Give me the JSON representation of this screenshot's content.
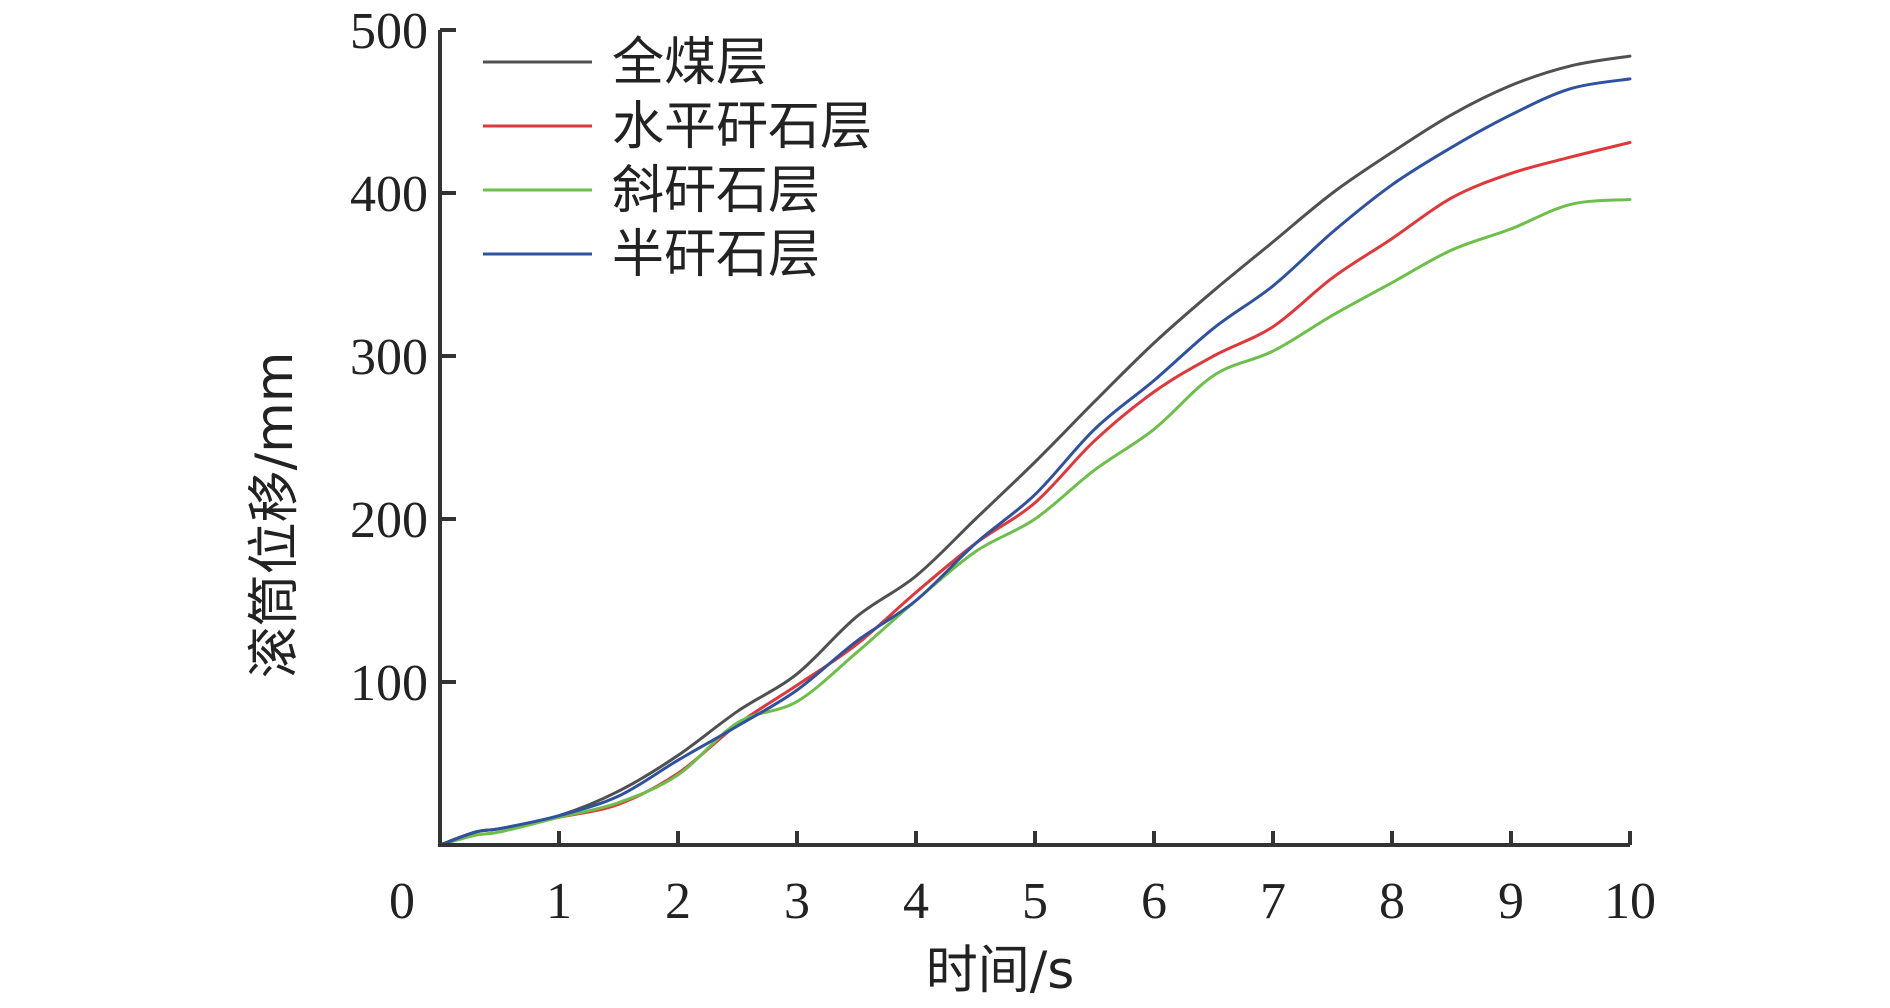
{
  "chart_data": {
    "type": "line",
    "xlabel": "时间/s",
    "ylabel": "滚筒位移/mm",
    "xlim": [
      0,
      10
    ],
    "ylim": [
      0,
      500
    ],
    "x_ticks": [
      "0",
      "1",
      "2",
      "3",
      "4",
      "5",
      "6",
      "7",
      "8",
      "9",
      "10"
    ],
    "y_ticks": [
      "100",
      "200",
      "300",
      "400",
      "500"
    ],
    "grid": false,
    "legend_position": "top-left",
    "x": [
      0,
      0.3,
      0.5,
      1,
      1.5,
      2,
      2.5,
      3,
      3.5,
      4,
      4.5,
      5,
      5.5,
      6,
      6.5,
      7,
      7.5,
      8,
      8.5,
      9,
      9.5,
      10
    ],
    "series": [
      {
        "name": "全煤层",
        "color": "#505050",
        "values": [
          0,
          8,
          10,
          18,
          33,
          55,
          82,
          105,
          140,
          165,
          200,
          235,
          272,
          308,
          340,
          370,
          400,
          425,
          448,
          466,
          478,
          484
        ]
      },
      {
        "name": "水平矸石层",
        "color": "#e0373b",
        "values": [
          0,
          8,
          10,
          17,
          25,
          44,
          74,
          98,
          123,
          155,
          185,
          210,
          248,
          278,
          300,
          318,
          348,
          372,
          397,
          412,
          422,
          431
        ]
      },
      {
        "name": "斜矸石层",
        "color": "#6dbf4a",
        "values": [
          0,
          6,
          8,
          17,
          26,
          43,
          75,
          88,
          118,
          150,
          180,
          200,
          230,
          255,
          288,
          303,
          325,
          345,
          365,
          378,
          393,
          396
        ]
      },
      {
        "name": "半矸石层",
        "color": "#2f52a0",
        "values": [
          0,
          8,
          10,
          18,
          30,
          52,
          73,
          95,
          125,
          150,
          185,
          215,
          255,
          285,
          317,
          343,
          376,
          405,
          428,
          448,
          464,
          470
        ]
      }
    ]
  }
}
